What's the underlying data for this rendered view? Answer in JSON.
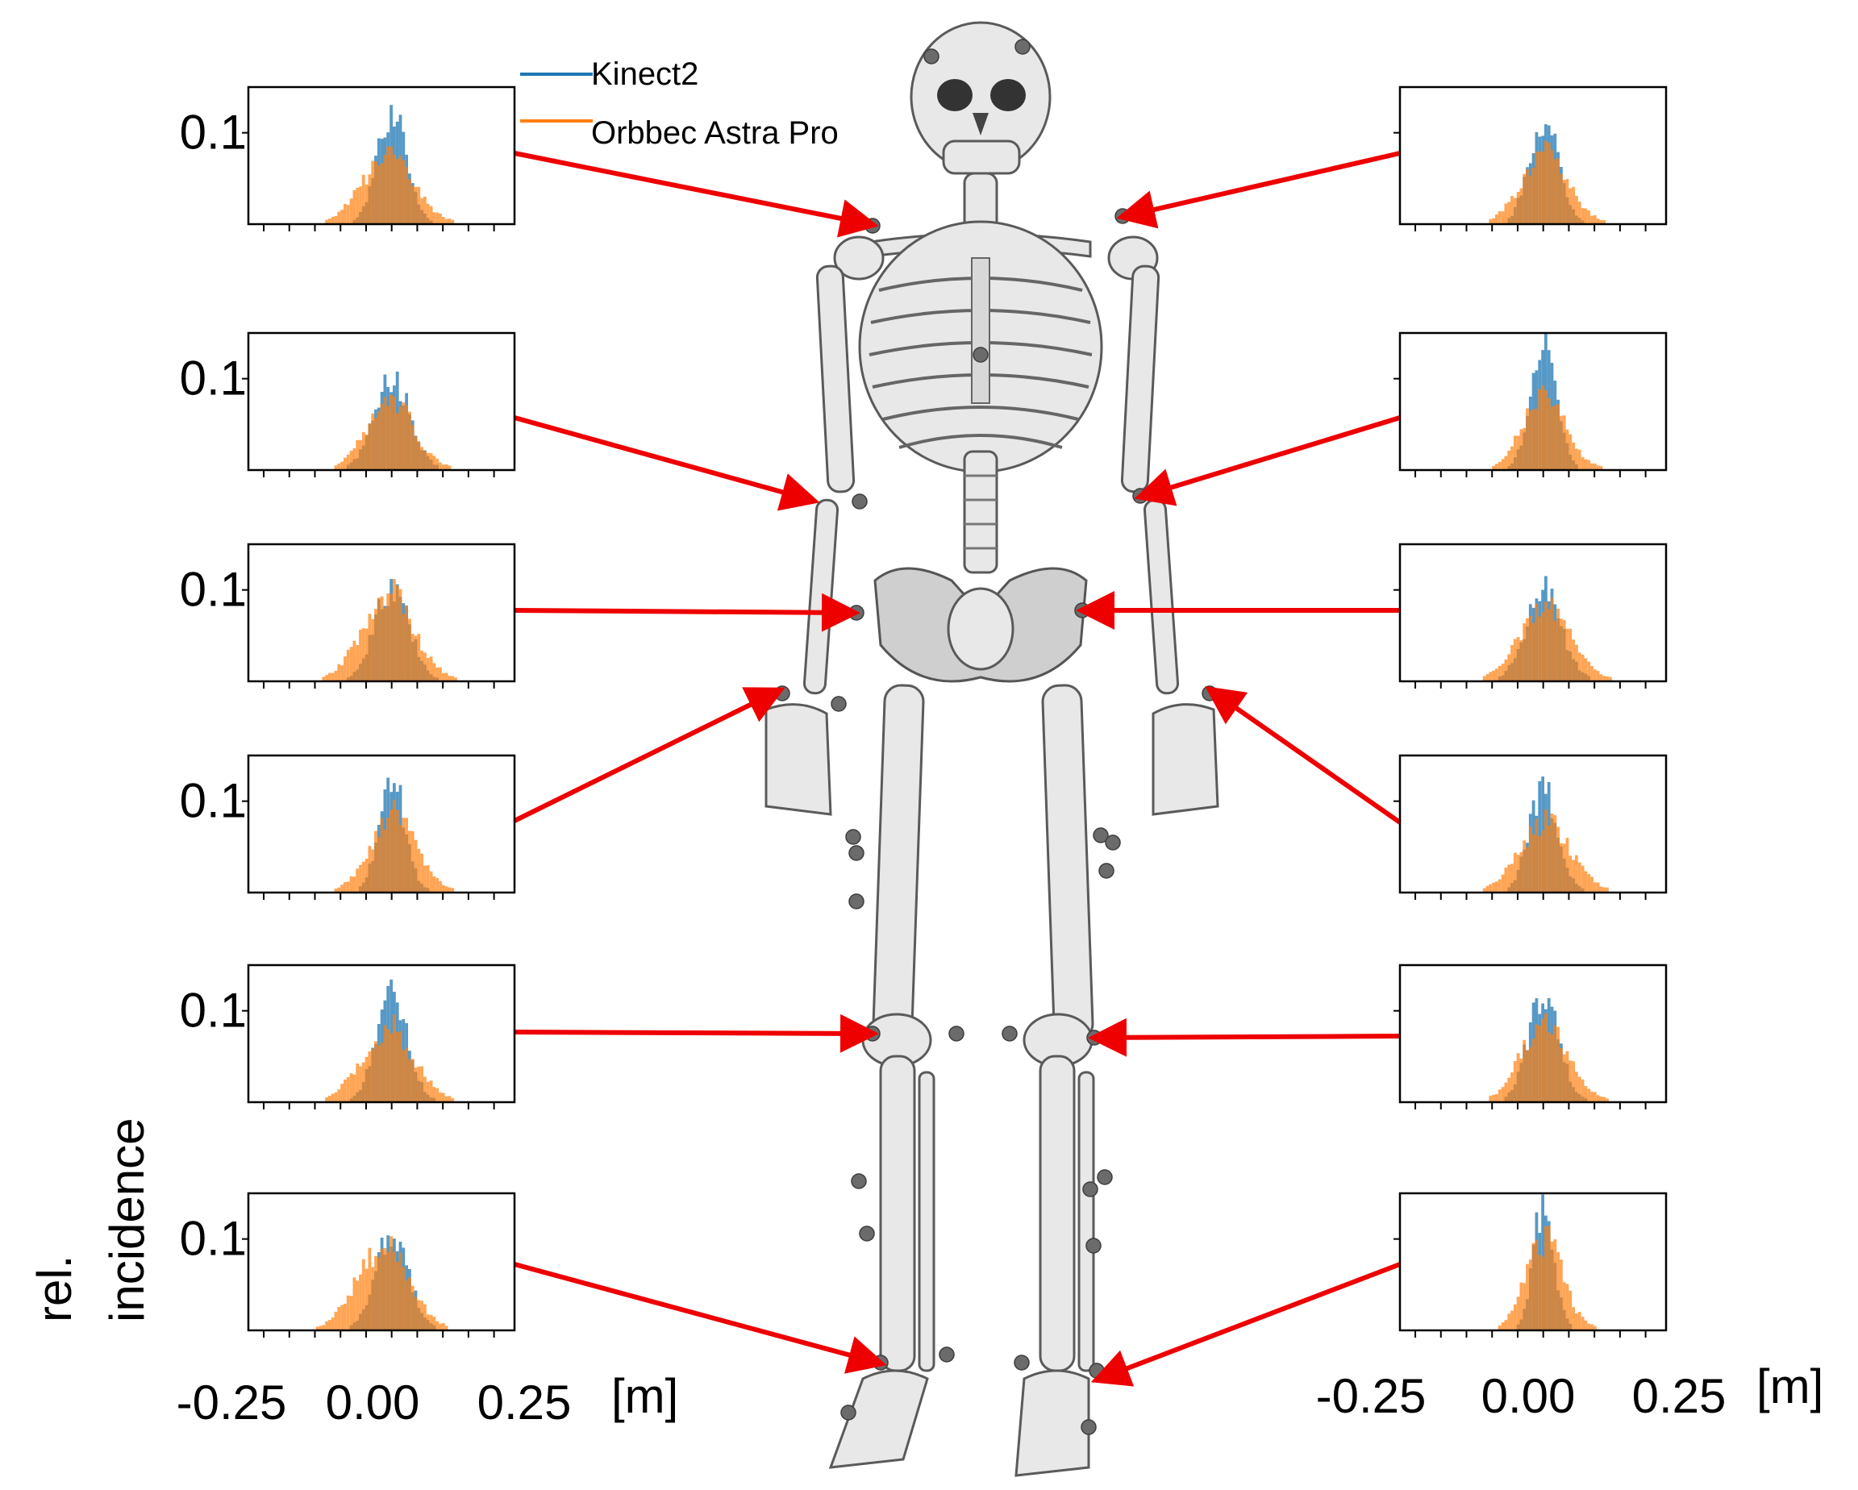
{
  "legend": {
    "entries": [
      {
        "label": "Kinect2",
        "color": "#1f77b4"
      },
      {
        "label": "Orbbec Astra Pro",
        "color": "#ff7f0e"
      }
    ]
  },
  "ylabel_line1": "rel.",
  "ylabel_line2": "incidence",
  "xunit": "[m]",
  "colors": {
    "arrow": "#ee0000",
    "kinect": "#1f77b4",
    "orbbec": "#ff7f0e"
  },
  "chart_data": [
    {
      "type": "bar",
      "side": "left",
      "joint_row": 1,
      "ytick": "0.1",
      "xlim": [
        -0.28,
        0.24
      ],
      "ylim": [
        0,
        0.15
      ],
      "series": [
        {
          "name": "Kinect2",
          "center": 0.0,
          "sd": 0.028,
          "peak": 0.128
        },
        {
          "name": "Orbbec Astra Pro",
          "center": -0.01,
          "sd": 0.05,
          "peak": 0.072
        }
      ]
    },
    {
      "type": "bar",
      "side": "left",
      "joint_row": 2,
      "ytick": "0.1",
      "xlim": [
        -0.28,
        0.24
      ],
      "ylim": [
        0,
        0.15
      ],
      "series": [
        {
          "name": "Kinect2",
          "center": 0.0,
          "sd": 0.035,
          "peak": 0.1
        },
        {
          "name": "Orbbec Astra Pro",
          "center": -0.005,
          "sd": 0.045,
          "peak": 0.075
        }
      ]
    },
    {
      "type": "bar",
      "side": "left",
      "joint_row": 3,
      "ytick": "0.1",
      "xlim": [
        -0.28,
        0.24
      ],
      "ylim": [
        0,
        0.15
      ],
      "series": [
        {
          "name": "Kinect2",
          "center": 0.0,
          "sd": 0.033,
          "peak": 0.105
        },
        {
          "name": "Orbbec Astra Pro",
          "center": -0.01,
          "sd": 0.05,
          "peak": 0.095
        }
      ]
    },
    {
      "type": "bar",
      "side": "left",
      "joint_row": 4,
      "ytick": "0.1",
      "xlim": [
        -0.28,
        0.24
      ],
      "ylim": [
        0,
        0.15
      ],
      "series": [
        {
          "name": "Kinect2",
          "center": 0.0,
          "sd": 0.025,
          "peak": 0.125
        },
        {
          "name": "Orbbec Astra Pro",
          "center": 0.0,
          "sd": 0.045,
          "peak": 0.08
        }
      ]
    },
    {
      "type": "bar",
      "side": "left",
      "joint_row": 5,
      "ytick": "0.1",
      "xlim": [
        -0.28,
        0.24
      ],
      "ylim": [
        0,
        0.15
      ],
      "series": [
        {
          "name": "Kinect2",
          "center": 0.0,
          "sd": 0.03,
          "peak": 0.12
        },
        {
          "name": "Orbbec Astra Pro",
          "center": -0.01,
          "sd": 0.05,
          "peak": 0.08
        }
      ]
    },
    {
      "type": "bar",
      "side": "left",
      "joint_row": 6,
      "ytick": "0.1",
      "xlim": [
        -0.28,
        0.24
      ],
      "ylim": [
        0,
        0.15
      ],
      "series": [
        {
          "name": "Kinect2",
          "center": 0.0,
          "sd": 0.032,
          "peak": 0.11
        },
        {
          "name": "Orbbec Astra Pro",
          "center": -0.02,
          "sd": 0.05,
          "peak": 0.09
        }
      ]
    },
    {
      "type": "bar",
      "side": "right",
      "joint_row": 1,
      "ytick": "",
      "xlim": [
        -0.28,
        0.24
      ],
      "ylim": [
        0,
        0.15
      ],
      "series": [
        {
          "name": "Kinect2",
          "center": 0.0,
          "sd": 0.028,
          "peak": 0.118
        },
        {
          "name": "Orbbec Astra Pro",
          "center": 0.0,
          "sd": 0.045,
          "peak": 0.075
        }
      ]
    },
    {
      "type": "bar",
      "side": "right",
      "joint_row": 2,
      "ytick": "",
      "xlim": [
        -0.28,
        0.24
      ],
      "ylim": [
        0,
        0.15
      ],
      "series": [
        {
          "name": "Kinect2",
          "center": 0.0,
          "sd": 0.025,
          "peak": 0.14
        },
        {
          "name": "Orbbec Astra Pro",
          "center": 0.0,
          "sd": 0.04,
          "peak": 0.085
        }
      ]
    },
    {
      "type": "bar",
      "side": "right",
      "joint_row": 3,
      "ytick": "",
      "xlim": [
        -0.28,
        0.24
      ],
      "ylim": [
        0,
        0.15
      ],
      "series": [
        {
          "name": "Kinect2",
          "center": 0.0,
          "sd": 0.035,
          "peak": 0.1
        },
        {
          "name": "Orbbec Astra Pro",
          "center": 0.0,
          "sd": 0.05,
          "peak": 0.08
        }
      ]
    },
    {
      "type": "bar",
      "side": "right",
      "joint_row": 4,
      "ytick": "",
      "xlim": [
        -0.28,
        0.24
      ],
      "ylim": [
        0,
        0.15
      ],
      "series": [
        {
          "name": "Kinect2",
          "center": 0.0,
          "sd": 0.028,
          "peak": 0.115
        },
        {
          "name": "Orbbec Astra Pro",
          "center": 0.0,
          "sd": 0.05,
          "peak": 0.075
        }
      ]
    },
    {
      "type": "bar",
      "side": "right",
      "joint_row": 5,
      "ytick": "",
      "xlim": [
        -0.28,
        0.24
      ],
      "ylim": [
        0,
        0.15
      ],
      "series": [
        {
          "name": "Kinect2",
          "center": 0.0,
          "sd": 0.03,
          "peak": 0.12
        },
        {
          "name": "Orbbec Astra Pro",
          "center": 0.0,
          "sd": 0.045,
          "peak": 0.085
        }
      ]
    },
    {
      "type": "bar",
      "side": "right",
      "joint_row": 6,
      "ytick": "",
      "xlim": [
        -0.28,
        0.24
      ],
      "ylim": [
        0,
        0.15
      ],
      "series": [
        {
          "name": "Kinect2",
          "center": 0.0,
          "sd": 0.02,
          "peak": 0.14
        },
        {
          "name": "Orbbec Astra Pro",
          "center": 0.0,
          "sd": 0.035,
          "peak": 0.1
        }
      ]
    }
  ],
  "xticks": [
    {
      "value": -0.25,
      "label": "-0.25"
    },
    {
      "value": 0.0,
      "label": "0.00"
    },
    {
      "value": 0.25,
      "label": "0.25"
    }
  ]
}
